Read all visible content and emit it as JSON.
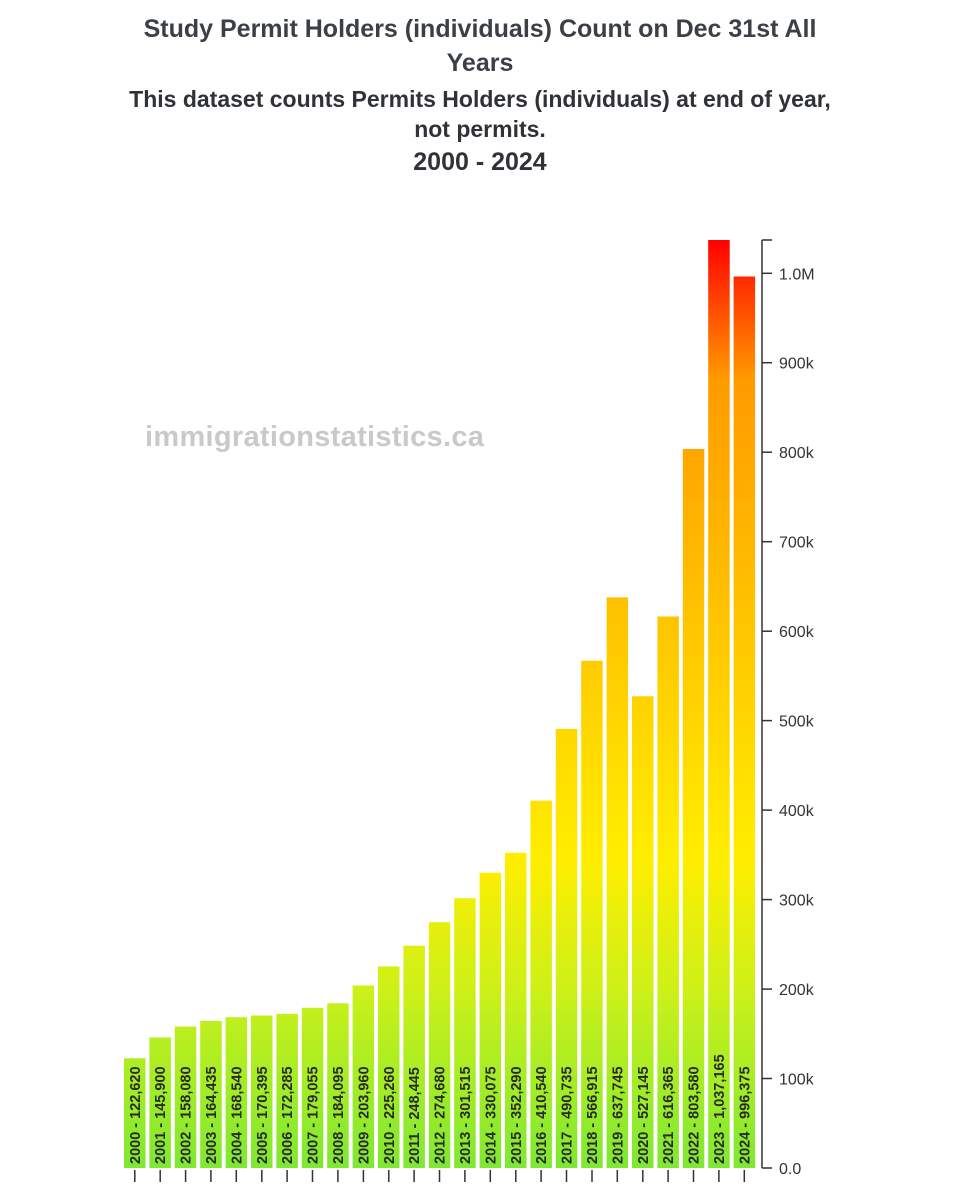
{
  "chart_data": {
    "type": "bar",
    "title_lines": [
      "Study Permit Holders (individuals) Count on Dec 31st All",
      "Years"
    ],
    "subtitle_lines": [
      "This dataset counts Permits Holders (individuals) at end of year,",
      "not permits."
    ],
    "range_label": "2000 - 2024",
    "watermark": "immigrationstatistics.ca",
    "categories": [
      "2000",
      "2001",
      "2002",
      "2003",
      "2004",
      "2005",
      "2006",
      "2007",
      "2008",
      "2009",
      "2010",
      "2011",
      "2012",
      "2013",
      "2014",
      "2015",
      "2016",
      "2017",
      "2018",
      "2019",
      "2020",
      "2021",
      "2022",
      "2023",
      "2024"
    ],
    "values": [
      122620,
      145900,
      158080,
      164435,
      168540,
      170395,
      172285,
      179055,
      184095,
      203960,
      225260,
      248445,
      274680,
      301515,
      330075,
      352290,
      410540,
      490735,
      566915,
      637745,
      527145,
      616365,
      803580,
      1037165,
      996375
    ],
    "bar_labels": [
      "2000 - 122,620",
      "2001 - 145,900",
      "2002 - 158,080",
      "2003 - 164,435",
      "2004 - 168,540",
      "2005 - 170,395",
      "2006 - 172,285",
      "2007 - 179,055",
      "2008 - 184,095",
      "2009 - 203,960",
      "2010 - 225,260",
      "2011 - 248,445",
      "2012 - 274,680",
      "2013 - 301,515",
      "2014 - 330,075",
      "2015 - 352,290",
      "2016 - 410,540",
      "2017 - 490,735",
      "2018 - 566,915",
      "2019 - 637,745",
      "2020 - 527,145",
      "2021 - 616,365",
      "2022 - 803,580",
      "2023 - 1,037,165",
      "2024 - 996,375"
    ],
    "y_axis": {
      "position": "right",
      "ylim": [
        0,
        1037165
      ],
      "ticks": [
        0,
        100000,
        200000,
        300000,
        400000,
        500000,
        600000,
        700000,
        800000,
        900000,
        1000000
      ],
      "tick_labels": [
        "0.0",
        "100k",
        "200k",
        "300k",
        "400k",
        "500k",
        "600k",
        "700k",
        "800k",
        "900k",
        "1.0M"
      ]
    },
    "color_scale": {
      "low": "#7fe832",
      "mid": "#ffee00",
      "high": "#ff0000"
    },
    "grid": false,
    "legend": "none"
  }
}
